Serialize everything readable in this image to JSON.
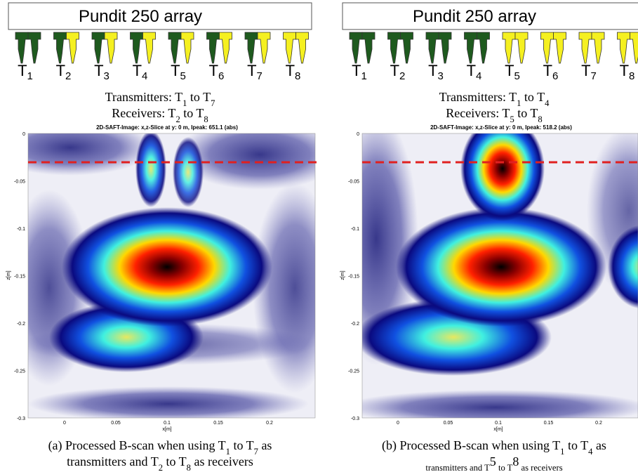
{
  "panels": [
    {
      "array_title": "Pundit 250 array",
      "transducers": [
        [
          "T",
          "1"
        ],
        [
          "T",
          "2"
        ],
        [
          "T",
          "3"
        ],
        [
          "T",
          "4"
        ],
        [
          "T",
          "5"
        ],
        [
          "T",
          "6"
        ],
        [
          "T",
          "7"
        ],
        [
          "T",
          "8"
        ]
      ],
      "transmitters": [
        "Transmitters: T",
        "1",
        " to T",
        "7"
      ],
      "receivers": [
        "Receivers: T",
        "2",
        " to T",
        "8"
      ],
      "plot_title": "2D-SAFT-Image: x,z-Slice at y: 0 m, Ipeak: 651.1 (abs)",
      "yticks": [
        "0",
        "-0.05",
        "-0.1",
        "-0.15",
        "-0.2",
        "-0.25",
        "-0.3"
      ],
      "xticks": [
        "0",
        "0.05",
        "0.1",
        "0.15",
        "0.2"
      ],
      "ylabel": "z[m]",
      "xlabel": "x[m]",
      "caption": [
        "(a) Processed B-scan when using T",
        "1",
        " to T",
        "7",
        " as",
        "transmitters and T",
        "2",
        " to T",
        "8",
        " as receivers"
      ]
    },
    {
      "array_title": "Pundit 250 array",
      "transducers": [
        [
          "T",
          "1"
        ],
        [
          "T",
          "2"
        ],
        [
          "T",
          "3"
        ],
        [
          "T",
          "4"
        ],
        [
          "T",
          "5"
        ],
        [
          "T",
          "6"
        ],
        [
          "T",
          "7"
        ],
        [
          "T",
          "8"
        ]
      ],
      "transmitters": [
        "Transmitters: T",
        "1",
        " to T",
        "4"
      ],
      "receivers": [
        "Receivers: T",
        "5",
        " to T",
        "8"
      ],
      "plot_title": "2D-SAFT-Image: x,z-Slice at y: 0 m, Ipeak: 518.2 (abs)",
      "yticks": [
        "0",
        "-0.05",
        "-0.1",
        "-0.15",
        "-0.2",
        "-0.25",
        "-0.3"
      ],
      "xticks": [
        "0",
        "0.05",
        "0.1",
        "0.15",
        "0.2"
      ],
      "ylabel": "z[m]",
      "xlabel": "x[m]",
      "caption": [
        "(b) Processed B-scan when using T",
        "1",
        " to T",
        "4",
        " as",
        "transmitters and T",
        "5",
        " to T",
        "8",
        " as receivers"
      ]
    }
  ]
}
